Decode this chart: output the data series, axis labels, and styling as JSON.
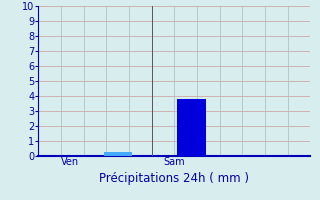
{
  "categories": [
    "Ven",
    "Sam"
  ],
  "values": [
    0.25,
    3.8
  ],
  "background_color": "#d8eeee",
  "axis_color": "#0000bb",
  "grid_color_h": "#cc9999",
  "grid_color_v": "#aabbbb",
  "title": "Précipitations 24h ( mm )",
  "title_color": "#0000aa",
  "title_fontsize": 8.5,
  "ylim": [
    0,
    10
  ],
  "yticks": [
    0,
    1,
    2,
    3,
    4,
    5,
    6,
    7,
    8,
    9,
    10
  ],
  "figsize": [
    3.2,
    2.0
  ],
  "dpi": 100,
  "tick_color": "#0000aa",
  "tick_fontsize": 7,
  "ven_bar_color": "#44aaff",
  "sam_bar_color": "#0000dd",
  "separator_color": "#555566"
}
